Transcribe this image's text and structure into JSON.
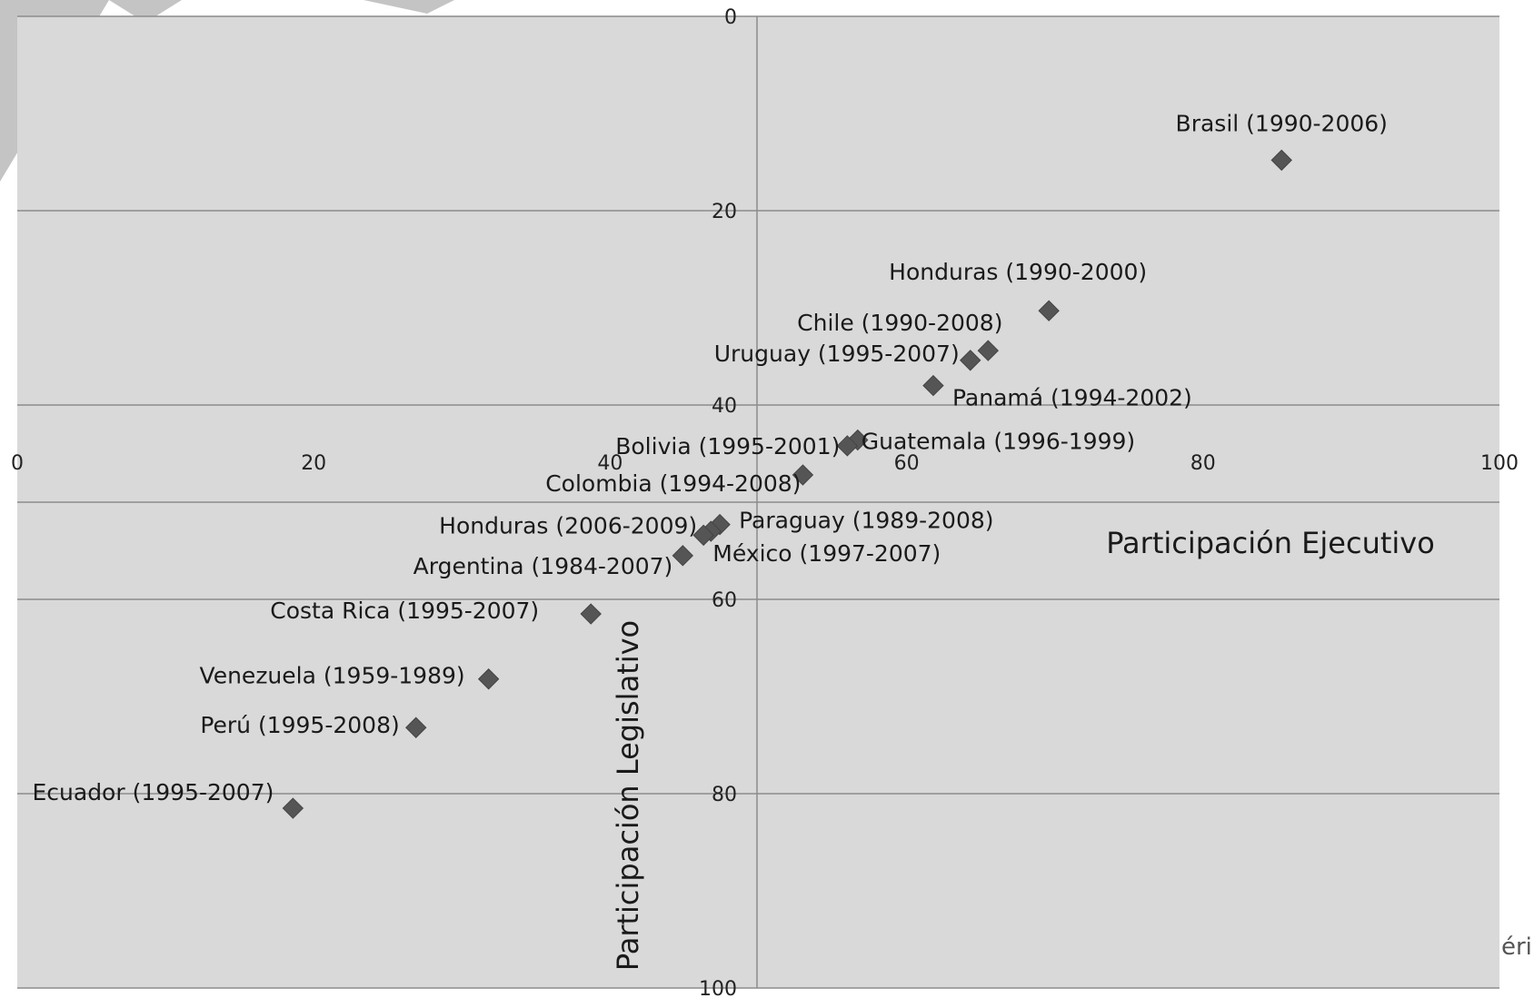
{
  "chart_data": {
    "type": "scatter",
    "title": "",
    "xlabel": "Participación Ejecutivo",
    "ylabel": "Participación Legislativo",
    "xlim": [
      0,
      100
    ],
    "ylim": [
      0,
      100
    ],
    "y_axis_inverted": true,
    "x_ticks": [
      "0",
      "20",
      "40",
      "60",
      "80",
      "100"
    ],
    "y_ticks": [
      "0",
      "20",
      "40",
      "60",
      "80",
      "100"
    ],
    "grid": "horizontal",
    "marker": "diamond",
    "colors": {
      "plot_bg": "#d9d9d9",
      "marker": "#555555",
      "grid": "#8c8c8c"
    },
    "points": [
      {
        "label": "Brasil (1990-2006)",
        "x": 85.3,
        "y": 14.8
      },
      {
        "label": "Honduras (1990-2000)",
        "x": 69.6,
        "y": 30.3
      },
      {
        "label": "Chile (1990-2008)",
        "x": 65.5,
        "y": 34.4
      },
      {
        "label": "Uruguay (1995-2007)",
        "x": 64.3,
        "y": 35.4
      },
      {
        "label": "Panamá (1994-2002)",
        "x": 61.8,
        "y": 38.0
      },
      {
        "label": "Guatemala (1996-1999)",
        "x": 56.7,
        "y": 43.6
      },
      {
        "label": "Bolivia (1995-2001)",
        "x": 56.0,
        "y": 44.2
      },
      {
        "label": "Colombia (1994-2008)",
        "x": 53.0,
        "y": 47.2
      },
      {
        "label": "Paraguay (1989-2008)",
        "x": 47.4,
        "y": 52.3
      },
      {
        "label": "México (1997-2007)",
        "x": 46.8,
        "y": 53.0
      },
      {
        "label": "Honduras (2006-2009)",
        "x": 46.3,
        "y": 53.4
      },
      {
        "label": "Argentina (1984-2007)",
        "x": 44.9,
        "y": 55.5
      },
      {
        "label": "Costa Rica (1995-2007)",
        "x": 38.7,
        "y": 61.5
      },
      {
        "label": "Venezuela (1959-1989)",
        "x": 31.8,
        "y": 68.2
      },
      {
        "label": "Perú (1995-2008)",
        "x": 26.9,
        "y": 73.2
      },
      {
        "label": "Ecuador (1995-2007)",
        "x": 18.6,
        "y": 81.5
      }
    ]
  },
  "edge_text": "éri"
}
